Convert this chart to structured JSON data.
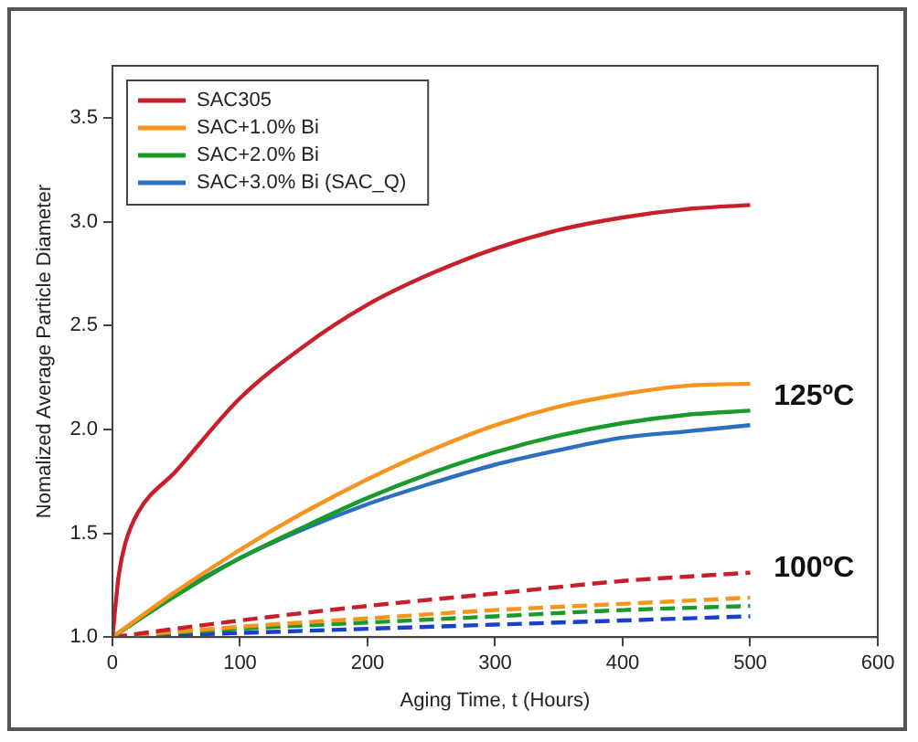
{
  "chart_data": {
    "type": "line",
    "xlabel": "Aging Time, t (Hours)",
    "ylabel": "Nomalized Average Particle Diameter",
    "xlim": [
      0,
      600
    ],
    "xticks": [
      0,
      100,
      200,
      300,
      400,
      500,
      600
    ],
    "ylim": [
      1.0,
      3.75
    ],
    "yticks": [
      {
        "value": 1,
        "label": "1.0"
      },
      1.5,
      {
        "value": 2,
        "label": "2.0"
      },
      2.5,
      {
        "value": 3,
        "label": "3.0"
      },
      3.5
    ],
    "grid": false,
    "legend": "top left",
    "marker": "none",
    "annotations": [
      "125ºC",
      "100ºC"
    ],
    "series": [
      {
        "name": "SAC305",
        "color": "#c8202a",
        "line_style": "solid",
        "x": [
          0,
          5,
          10,
          20,
          50,
          100,
          150,
          200,
          250,
          300,
          350,
          400,
          450,
          500
        ],
        "values": [
          1.0,
          1.3,
          1.45,
          1.6,
          1.8,
          2.15,
          2.4,
          2.6,
          2.75,
          2.87,
          2.96,
          3.02,
          3.06,
          3.08
        ]
      },
      {
        "name": "SAC+1.0% Bi",
        "color": "#f7941d",
        "line_style": "solid",
        "x": [
          0,
          50,
          100,
          150,
          200,
          250,
          300,
          350,
          400,
          450,
          500
        ],
        "values": [
          1.0,
          1.22,
          1.42,
          1.6,
          1.76,
          1.9,
          2.02,
          2.11,
          2.17,
          2.21,
          2.22
        ]
      },
      {
        "name": "SAC+2.0% Bi",
        "color": "#1a9a2a",
        "line_style": "solid",
        "x": [
          0,
          50,
          100,
          150,
          200,
          250,
          300,
          350,
          400,
          450,
          500
        ],
        "values": [
          1.0,
          1.2,
          1.38,
          1.53,
          1.67,
          1.79,
          1.89,
          1.97,
          2.03,
          2.07,
          2.09
        ]
      },
      {
        "name": "SAC+3.0% Bi (SAC_Q)",
        "color": "#2a6fc0",
        "line_style": "solid",
        "x": [
          0,
          50,
          100,
          150,
          200,
          250,
          300,
          350,
          400,
          450,
          500
        ],
        "values": [
          1.0,
          1.21,
          1.38,
          1.52,
          1.64,
          1.74,
          1.83,
          1.9,
          1.96,
          1.99,
          2.02
        ]
      },
      {
        "color": "#c8202a",
        "line_style": "dashed",
        "x": [
          0,
          100,
          200,
          300,
          400,
          500
        ],
        "values": [
          1.0,
          1.08,
          1.15,
          1.21,
          1.27,
          1.31
        ]
      },
      {
        "color": "#f7941d",
        "line_style": "dashed",
        "x": [
          0,
          100,
          200,
          300,
          400,
          500
        ],
        "values": [
          1.0,
          1.05,
          1.09,
          1.13,
          1.16,
          1.19
        ]
      },
      {
        "color": "#1a9a2a",
        "line_style": "dashed",
        "x": [
          0,
          100,
          200,
          300,
          400,
          500
        ],
        "values": [
          1.0,
          1.04,
          1.07,
          1.1,
          1.13,
          1.15
        ]
      },
      {
        "color": "#1a3fc8",
        "line_style": "dashed",
        "x": [
          0,
          100,
          200,
          300,
          400,
          500
        ],
        "values": [
          1.0,
          1.02,
          1.04,
          1.06,
          1.08,
          1.1
        ]
      }
    ]
  }
}
